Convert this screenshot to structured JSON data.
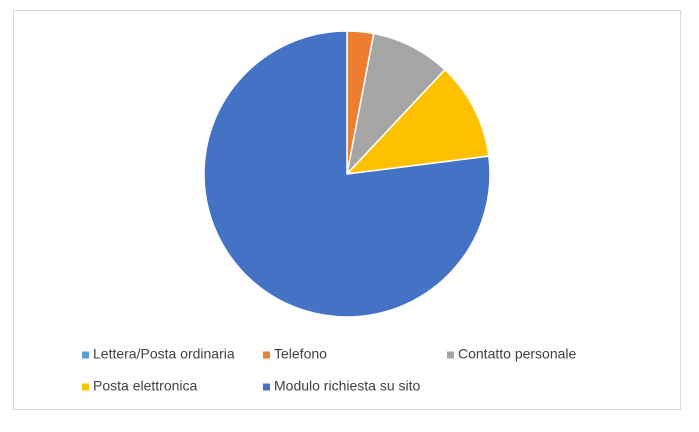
{
  "chart_data": {
    "type": "pie",
    "categories": [
      "Lettera/Posta ordinaria",
      "Telefono",
      "Contatto personale",
      "Posta elettronica",
      "Modulo richiesta su sito"
    ],
    "values": [
      0,
      3,
      9,
      11,
      77
    ],
    "colors": [
      "#5b9bd5",
      "#ed7d31",
      "#a5a5a5",
      "#ffc000",
      "#4472c4"
    ],
    "legend": "bottom"
  }
}
